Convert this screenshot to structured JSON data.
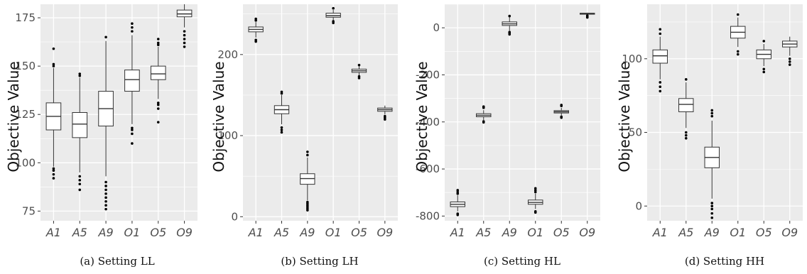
{
  "figure": {
    "ylabel": "Objective Value",
    "categories": [
      "A1",
      "A5",
      "A9",
      "O1",
      "O5",
      "O9"
    ],
    "colors": {
      "panel_bg": "#ebebeb",
      "grid": "#ffffff",
      "box_fill": "#ffffff",
      "box_stroke": "#333333",
      "outlier": "#000000"
    }
  },
  "chart_data": [
    {
      "type": "box",
      "caption": "(a) Setting LL",
      "ylabel": "Objective Value",
      "categories": [
        "A1",
        "A5",
        "A9",
        "O1",
        "O5",
        "O9"
      ],
      "ylim": [
        70,
        182
      ],
      "yticks": [
        75,
        100,
        125,
        150,
        175
      ],
      "series": [
        {
          "category": "A1",
          "whisker_low": 98,
          "q1": 117,
          "median": 124,
          "q3": 131,
          "whisker_high": 149,
          "outliers": [
            92,
            94,
            96,
            97,
            150,
            151,
            159
          ]
        },
        {
          "category": "A5",
          "whisker_low": 95,
          "q1": 113,
          "median": 120,
          "q3": 126,
          "whisker_high": 144,
          "outliers": [
            86,
            89,
            91,
            93,
            145,
            146
          ]
        },
        {
          "category": "A9",
          "whisker_low": 93,
          "q1": 119,
          "median": 128,
          "q3": 137,
          "whisker_high": 163,
          "outliers": [
            76,
            78,
            80,
            82,
            84,
            86,
            88,
            90,
            165
          ]
        },
        {
          "category": "O1",
          "whisker_low": 120,
          "q1": 137,
          "median": 143,
          "q3": 148,
          "whisker_high": 166,
          "outliers": [
            110,
            115,
            117,
            118,
            168,
            170,
            172
          ]
        },
        {
          "category": "O5",
          "whisker_low": 133,
          "q1": 143,
          "median": 146,
          "q3": 150,
          "whisker_high": 160,
          "outliers": [
            121,
            128,
            130,
            131,
            161,
            162,
            164
          ]
        },
        {
          "category": "O9",
          "whisker_low": 170,
          "q1": 175.5,
          "median": 177,
          "q3": 179,
          "whisker_high": 182,
          "outliers": [
            160,
            162,
            164,
            166,
            168
          ]
        }
      ]
    },
    {
      "type": "box",
      "caption": "(b) Setting LH",
      "ylabel": "Objective Value",
      "categories": [
        "A1",
        "A5",
        "A9",
        "O1",
        "O5",
        "O9"
      ],
      "ylim": [
        -5,
        262
      ],
      "yticks": [
        0,
        100,
        200
      ],
      "series": [
        {
          "category": "A1",
          "whisker_low": 221,
          "q1": 228,
          "median": 231,
          "q3": 234,
          "whisker_high": 240,
          "outliers": [
            216,
            218,
            242,
            244
          ]
        },
        {
          "category": "A5",
          "whisker_low": 114,
          "q1": 127,
          "median": 132,
          "q3": 137,
          "whisker_high": 150,
          "outliers": [
            104,
            107,
            110,
            152,
            154
          ]
        },
        {
          "category": "A9",
          "whisker_low": 20,
          "q1": 40,
          "median": 47,
          "q3": 53,
          "whisker_high": 73,
          "outliers": [
            8,
            10,
            12,
            14,
            16,
            18,
            76,
            80
          ]
        },
        {
          "category": "O1",
          "whisker_low": 242,
          "q1": 246,
          "median": 248,
          "q3": 251,
          "whisker_high": 255,
          "outliers": [
            239,
            241,
            257
          ]
        },
        {
          "category": "O5",
          "whisker_low": 174,
          "q1": 178,
          "median": 180,
          "q3": 182,
          "whisker_high": 186,
          "outliers": [
            171,
            173,
            187
          ]
        },
        {
          "category": "O9",
          "whisker_low": 126,
          "q1": 130,
          "median": 132,
          "q3": 134,
          "whisker_high": 137,
          "outliers": [
            120,
            122,
            124
          ]
        }
      ]
    },
    {
      "type": "box",
      "caption": "(c) Setting HL",
      "ylabel": "Objective Value",
      "categories": [
        "A1",
        "A5",
        "A9",
        "O1",
        "O5",
        "O9"
      ],
      "ylim": [
        -820,
        100
      ],
      "yticks": [
        -800,
        -600,
        -400,
        -200,
        0
      ],
      "series": [
        {
          "category": "A1",
          "whisker_low": -780,
          "q1": -760,
          "median": -750,
          "q3": -740,
          "whisker_high": -712,
          "outliers": [
            -795,
            -790,
            -705,
            -698,
            -690
          ]
        },
        {
          "category": "A5",
          "whisker_low": -392,
          "q1": -378,
          "median": -372,
          "q3": -365,
          "whisker_high": -350,
          "outliers": [
            -402,
            -398,
            -340,
            -335
          ]
        },
        {
          "category": "A9",
          "whisker_low": -12,
          "q1": 10,
          "median": 17,
          "q3": 25,
          "whisker_high": 45,
          "outliers": [
            -28,
            -22,
            -18,
            50
          ]
        },
        {
          "category": "O1",
          "whisker_low": -770,
          "q1": -750,
          "median": -742,
          "q3": -732,
          "whisker_high": -705,
          "outliers": [
            -785,
            -780,
            -698,
            -690,
            -682
          ]
        },
        {
          "category": "O5",
          "whisker_low": -372,
          "q1": -362,
          "median": -357,
          "q3": -352,
          "whisker_high": -340,
          "outliers": [
            -382,
            -378,
            -332,
            -328
          ]
        },
        {
          "category": "O9",
          "whisker_low": 58,
          "q1": 60,
          "median": 61,
          "q3": 62,
          "whisker_high": 64,
          "outliers": [
            44,
            48,
            52
          ]
        }
      ]
    },
    {
      "type": "box",
      "caption": "(d) Setting HH",
      "ylabel": "Objective Value",
      "categories": [
        "A1",
        "A5",
        "A9",
        "O1",
        "O5",
        "O9"
      ],
      "ylim": [
        -10,
        137
      ],
      "yticks": [
        0,
        50,
        100
      ],
      "series": [
        {
          "category": "A1",
          "whisker_low": 86,
          "q1": 97,
          "median": 102,
          "q3": 106,
          "whisker_high": 115,
          "outliers": [
            78,
            81,
            84,
            117,
            120
          ]
        },
        {
          "category": "A5",
          "whisker_low": 53,
          "q1": 64,
          "median": 69,
          "q3": 73,
          "whisker_high": 84,
          "outliers": [
            46,
            48,
            50,
            86
          ]
        },
        {
          "category": "A9",
          "whisker_low": 5,
          "q1": 26,
          "median": 33,
          "q3": 40,
          "whisker_high": 58,
          "outliers": [
            -8,
            -5,
            -2,
            0,
            2,
            61,
            63,
            65
          ]
        },
        {
          "category": "O1",
          "whisker_low": 108,
          "q1": 114,
          "median": 118,
          "q3": 122,
          "whisker_high": 128,
          "outliers": [
            103,
            105,
            130
          ]
        },
        {
          "category": "O5",
          "whisker_low": 95,
          "q1": 100,
          "median": 103,
          "q3": 106,
          "whisker_high": 110,
          "outliers": [
            91,
            93,
            112
          ]
        },
        {
          "category": "O9",
          "whisker_low": 102,
          "q1": 108,
          "median": 110,
          "q3": 112,
          "whisker_high": 115,
          "outliers": [
            96,
            98,
            100
          ]
        }
      ]
    }
  ]
}
